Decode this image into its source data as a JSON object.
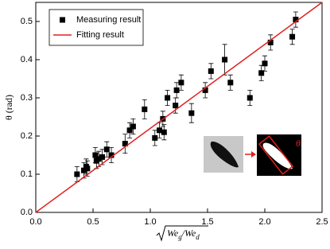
{
  "chart_data": {
    "type": "scatter",
    "xlabel": [
      "We",
      "g",
      "/We",
      "d"
    ],
    "ylabel": "θ (rad)",
    "annotations": [
      "θ"
    ],
    "xlim": [
      0,
      2.5
    ],
    "ylim": [
      0,
      0.55
    ],
    "xticks": [
      {
        "value": 0,
        "label": "0.0"
      },
      0.5,
      {
        "value": 1,
        "label": "1.0"
      },
      1.5,
      {
        "value": 2,
        "label": "2.0"
      },
      2.5
    ],
    "yticks": [
      {
        "value": 0,
        "label": "0.0"
      },
      0.1,
      0.2,
      0.3,
      0.4,
      0.5
    ],
    "legend": "upper left",
    "series": [
      {
        "name": "Measuring result",
        "color": "#000000",
        "kind": "points",
        "x": [
          0.36,
          0.42,
          0.44,
          0.45,
          0.52,
          0.53,
          0.55,
          0.58,
          0.62,
          0.66,
          0.78,
          0.82,
          0.85,
          0.95,
          1.04,
          1.08,
          1.11,
          1.12,
          1.15,
          1.22,
          1.23,
          1.27,
          1.36,
          1.48,
          1.53,
          1.65,
          1.7,
          1.87,
          1.97,
          2.0,
          2.05,
          2.24,
          2.27
        ],
        "values": [
          0.1,
          0.11,
          0.12,
          0.115,
          0.15,
          0.135,
          0.14,
          0.145,
          0.165,
          0.15,
          0.18,
          0.215,
          0.225,
          0.27,
          0.195,
          0.215,
          0.245,
          0.21,
          0.3,
          0.28,
          0.32,
          0.34,
          0.26,
          0.32,
          0.37,
          0.4,
          0.34,
          0.3,
          0.365,
          0.39,
          0.445,
          0.46,
          0.505
        ],
        "errors": [
          0.02,
          0.02,
          0.02,
          0.02,
          0.02,
          0.02,
          0.02,
          0.02,
          0.02,
          0.02,
          0.025,
          0.02,
          0.02,
          0.025,
          0.02,
          0.02,
          0.02,
          0.02,
          0.02,
          0.02,
          0.02,
          0.02,
          0.025,
          0.02,
          0.02,
          0.04,
          0.02,
          0.02,
          0.02,
          0.02,
          0.02,
          0.02,
          0.02
        ]
      },
      {
        "name": "Fitting result",
        "color": "#e02020",
        "kind": "line",
        "x": [
          0,
          2.5
        ],
        "values": [
          0,
          0.55
        ]
      }
    ]
  }
}
